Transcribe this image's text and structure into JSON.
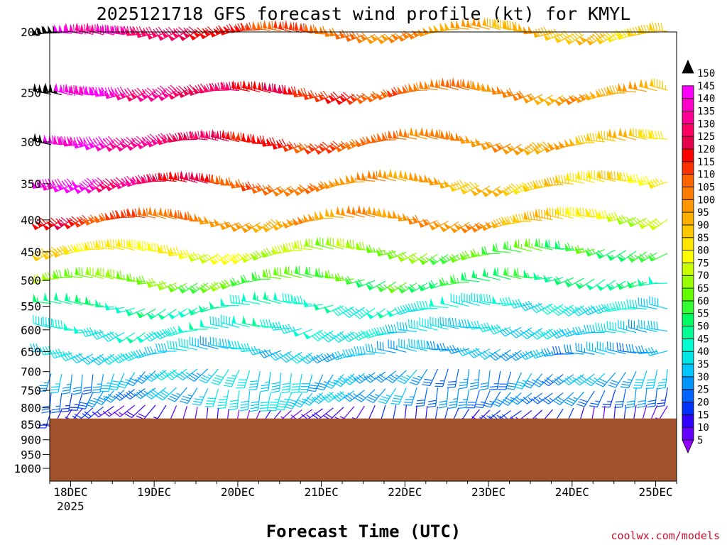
{
  "chart_data": {
    "type": "wind-barb-profile",
    "title": "2025121718 GFS forecast wind profile (kt) for KMYL",
    "xlabel": "Forecast Time (UTC)",
    "credit": "coolwx.com/models",
    "ylabel": "",
    "y_axis_reversed": true,
    "y_ticks": [
      200,
      250,
      300,
      350,
      400,
      450,
      500,
      550,
      600,
      650,
      700,
      750,
      800,
      850,
      900,
      950,
      1000
    ],
    "x_ticks": [
      {
        "label": "18DEC",
        "sub": "2025",
        "hour": 6
      },
      {
        "label": "19DEC",
        "sub": "",
        "hour": 30
      },
      {
        "label": "20DEC",
        "sub": "",
        "hour": 54
      },
      {
        "label": "21DEC",
        "sub": "",
        "hour": 78
      },
      {
        "label": "22DEC",
        "sub": "",
        "hour": 102
      },
      {
        "label": "23DEC",
        "sub": "",
        "hour": 126
      },
      {
        "label": "24DEC",
        "sub": "",
        "hour": 150
      },
      {
        "label": "25DEC",
        "sub": "",
        "hour": 174
      }
    ],
    "x_range_hours": [
      0,
      180
    ],
    "barb_interval_hours": 3,
    "surface_pressure_hpa": 832,
    "ground_color": "#a0522d",
    "colorbar": {
      "levels": [
        5,
        10,
        15,
        20,
        25,
        30,
        35,
        40,
        45,
        50,
        55,
        60,
        65,
        70,
        75,
        80,
        85,
        90,
        95,
        100,
        105,
        110,
        115,
        120,
        125,
        130,
        135,
        140,
        145,
        150
      ],
      "colors": [
        "#9600fe",
        "#6400fe",
        "#3200fe",
        "#0032fe",
        "#0064fe",
        "#0096fe",
        "#00c8fe",
        "#00e6e6",
        "#00fed0",
        "#00fe96",
        "#00fe64",
        "#32fe32",
        "#64fe00",
        "#96fe00",
        "#c8fe00",
        "#fefe00",
        "#fee600",
        "#fec800",
        "#feaf00",
        "#fe9600",
        "#fe7d00",
        "#fe6400",
        "#fe3200",
        "#fe0000",
        "#e6004b",
        "#fe0064",
        "#fe0096",
        "#fe00c8",
        "#fe00fe",
        "#000000"
      ]
    },
    "levels_hpa": [
      200,
      250,
      300,
      350,
      400,
      450,
      500,
      550,
      600,
      650,
      700,
      750,
      800,
      850
    ],
    "speed_profile_kt": [
      [
        150,
        118,
        100,
        90
      ],
      [
        150,
        125,
        108,
        96
      ],
      [
        150,
        122,
        105,
        92
      ],
      [
        150,
        112,
        98,
        84
      ],
      [
        125,
        100,
        105,
        72
      ],
      [
        90,
        78,
        65,
        60
      ],
      [
        72,
        66,
        60,
        52
      ],
      [
        55,
        50,
        45,
        42
      ],
      [
        45,
        48,
        40,
        38
      ],
      [
        40,
        38,
        35,
        32
      ],
      [
        32,
        40,
        30,
        36
      ],
      [
        25,
        42,
        30,
        28
      ],
      [
        20,
        12,
        22,
        15
      ],
      [
        18,
        22,
        18,
        16
      ]
    ]
  }
}
